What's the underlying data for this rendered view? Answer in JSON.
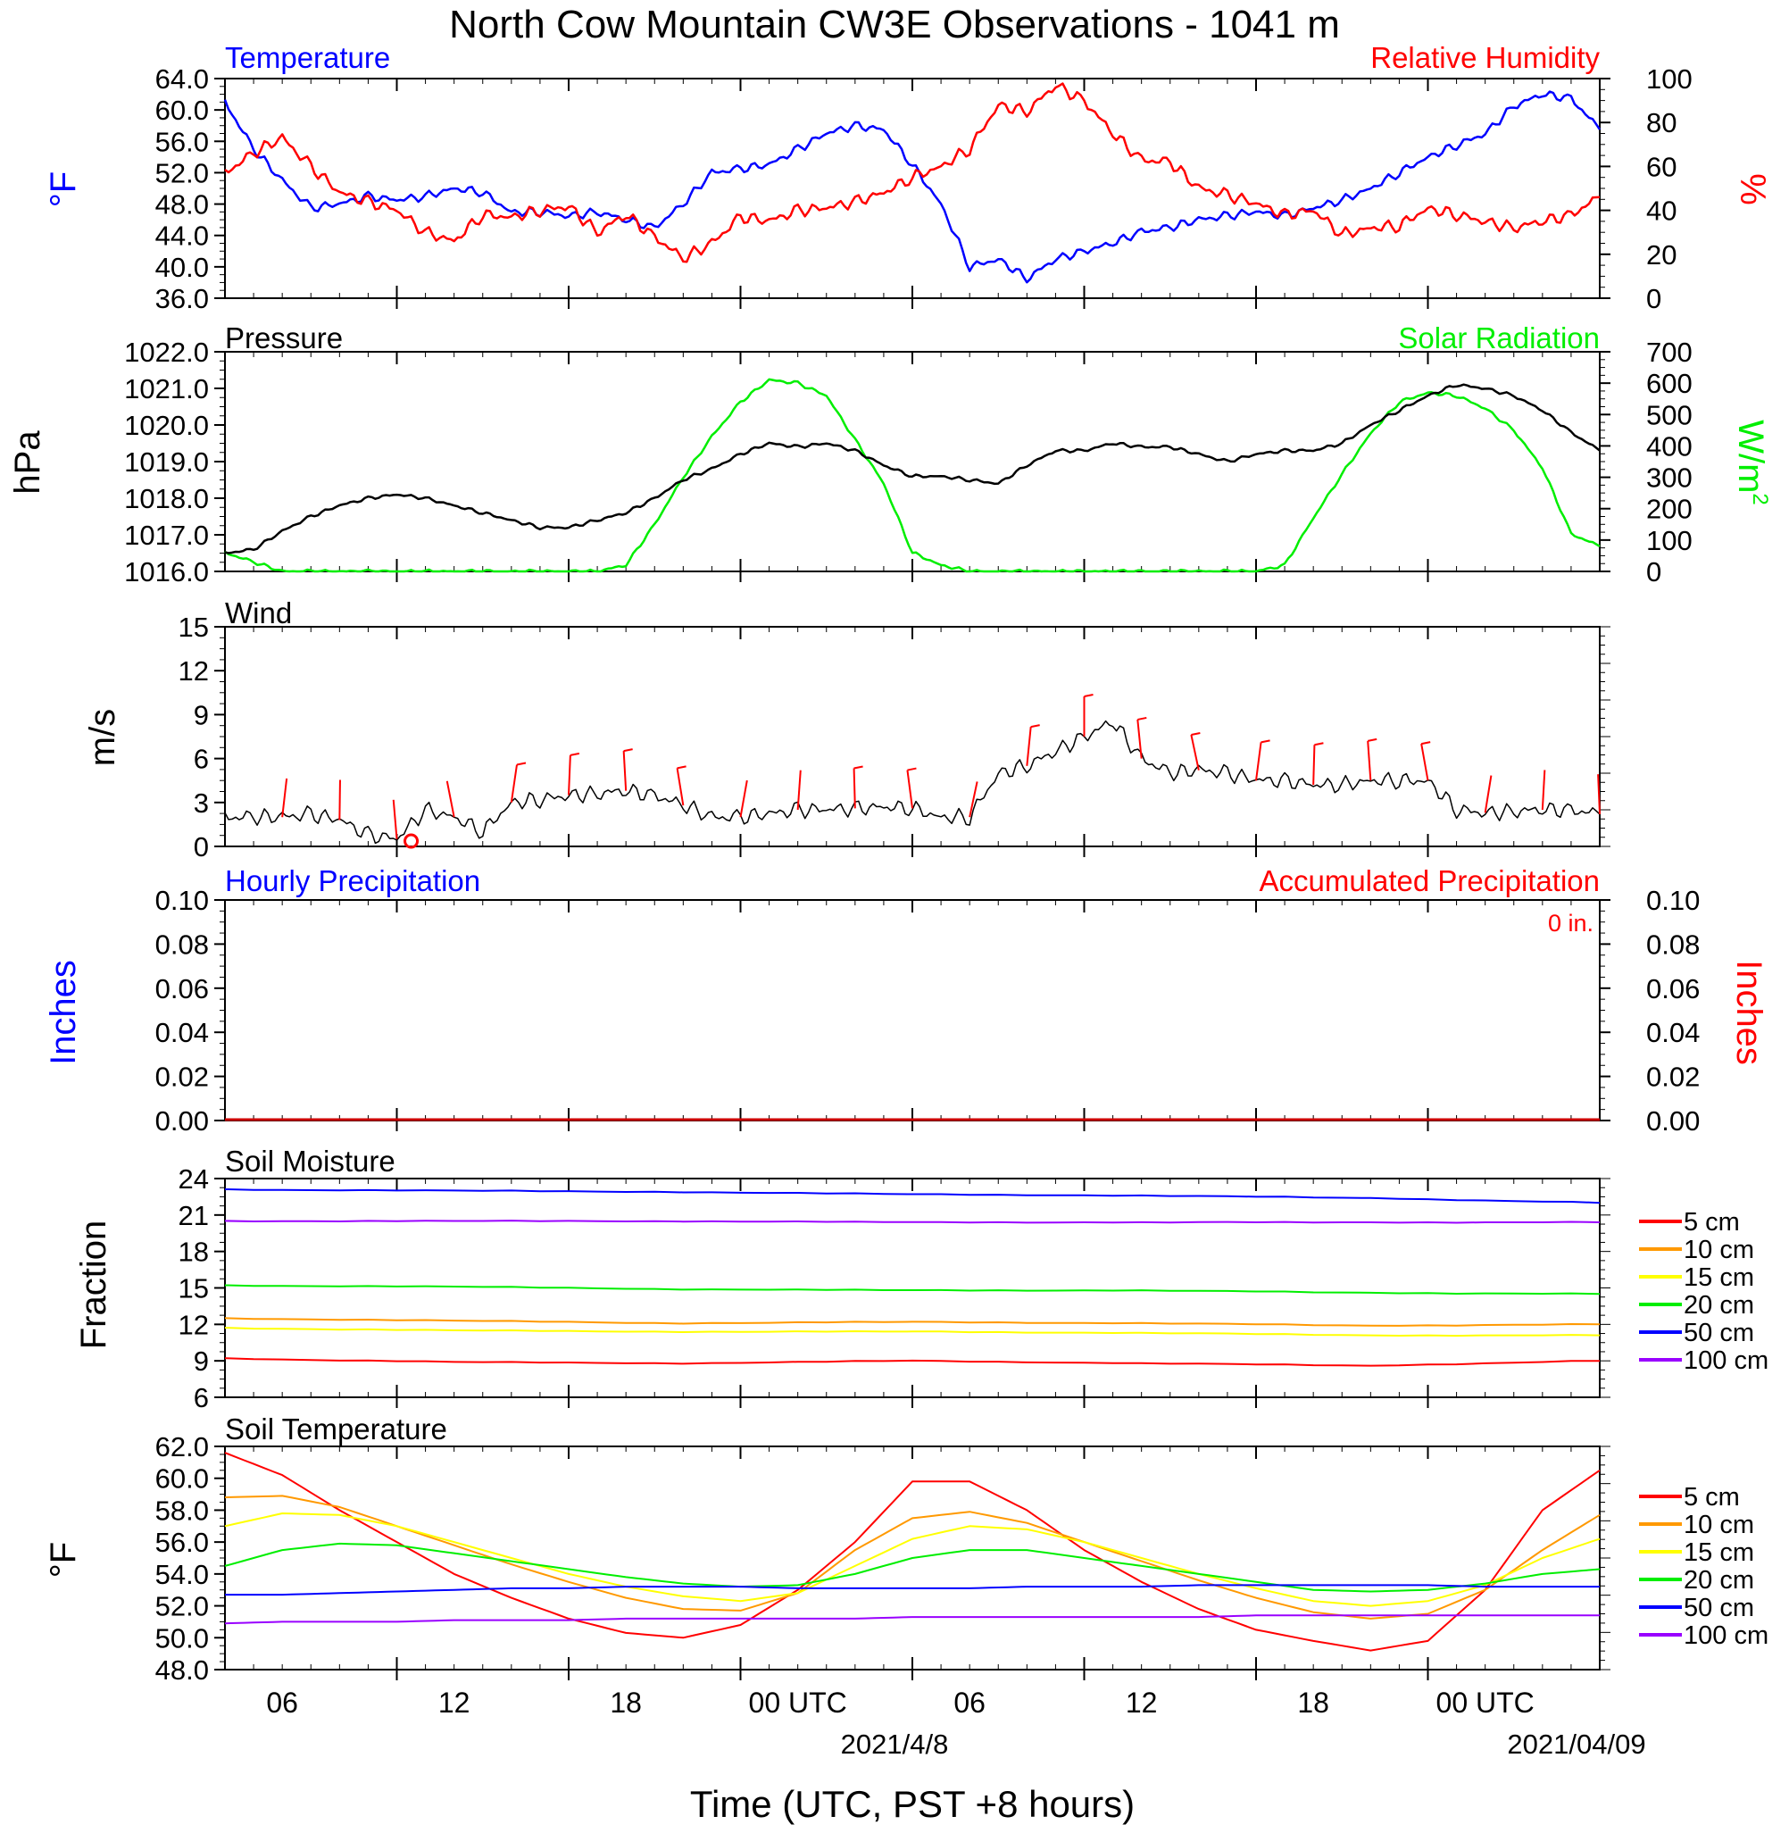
{
  "title": "North Cow Mountain CW3E Observations - 1041 m",
  "x_axis": {
    "ticks": [
      "06",
      "12",
      "18",
      "00 UTC",
      "06",
      "12",
      "18",
      "00 UTC"
    ],
    "dates": [
      "2021/4/8",
      "2021/04/09"
    ],
    "label": "Time (UTC, PST +8 hours)"
  },
  "colors": {
    "blue": "#0000ff",
    "red": "#ff0000",
    "green": "#00ee00",
    "black": "#000000",
    "orange": "#ff9900",
    "yellow": "#ffff00",
    "purple": "#9900ff"
  },
  "chart_data": [
    {
      "type": "line",
      "panel": "temperature-humidity",
      "title_left": "Temperature",
      "title_right": "Relative Humidity",
      "ylabel_left": "°F",
      "ylabel_right": "%",
      "yticks_left": [
        "64.0",
        "60.0",
        "56.0",
        "52.0",
        "48.0",
        "44.0",
        "40.0",
        "36.0"
      ],
      "yticks_right": [
        "100",
        "80",
        "60",
        "40",
        "20",
        "0"
      ],
      "ylim_left": [
        36,
        64
      ],
      "ylim_right": [
        0,
        100
      ],
      "x_hours": [
        0,
        1,
        2,
        3,
        4,
        5,
        6,
        7,
        8,
        9,
        10,
        11,
        12,
        13,
        14,
        15,
        16,
        17,
        18,
        19,
        20,
        21,
        22,
        23,
        24,
        25,
        26,
        27,
        28,
        29,
        30,
        31,
        32,
        33,
        34,
        35,
        36,
        37,
        38,
        39,
        40,
        41,
        42,
        43,
        44,
        45,
        46,
        47,
        48
      ],
      "series": [
        {
          "name": "Temperature",
          "axis": "left",
          "color": "#0000ff",
          "values": [
            61,
            55,
            51,
            47.5,
            48,
            49,
            48.5,
            49,
            50,
            49.5,
            47,
            47,
            46.5,
            47,
            46,
            45,
            48,
            52,
            52.5,
            53,
            55,
            57,
            58,
            57.5,
            53,
            48,
            40,
            41,
            38.5,
            41,
            42,
            43,
            44.5,
            45,
            46,
            46.5,
            47,
            46.5,
            47.5,
            48.5,
            50,
            52,
            54,
            55.5,
            57,
            60.5,
            62,
            61.5,
            57.5
          ]
        },
        {
          "name": "Relative Humidity",
          "axis": "right",
          "color": "#ff0000",
          "values": [
            57,
            66,
            73,
            60,
            48,
            44,
            40,
            30,
            26,
            38,
            37,
            40,
            42,
            30,
            38,
            28,
            18,
            25,
            37,
            35,
            40,
            41,
            44,
            48,
            55,
            60,
            68,
            88,
            85,
            97,
            90,
            75,
            63,
            62,
            50,
            47,
            43,
            38,
            40,
            29,
            32,
            33,
            41,
            38,
            35,
            32,
            35,
            38,
            46
          ]
        }
      ]
    },
    {
      "type": "line",
      "panel": "pressure-solar",
      "title_left": "Pressure",
      "title_right": "Solar Radiation",
      "ylabel_left": "hPa",
      "ylabel_right_base": "W/m",
      "ylabel_right_sup": "2",
      "yticks_left": [
        "1022.0",
        "1021.0",
        "1020.0",
        "1019.0",
        "1018.0",
        "1017.0",
        "1016.0"
      ],
      "yticks_right": [
        "700",
        "600",
        "500",
        "400",
        "300",
        "200",
        "100",
        "0"
      ],
      "ylim_left": [
        1016,
        1022
      ],
      "ylim_right": [
        0,
        700
      ],
      "x_hours": [
        0,
        1,
        2,
        3,
        4,
        5,
        6,
        7,
        8,
        9,
        10,
        11,
        12,
        13,
        14,
        15,
        16,
        17,
        18,
        19,
        20,
        21,
        22,
        23,
        24,
        25,
        26,
        27,
        28,
        29,
        30,
        31,
        32,
        33,
        34,
        35,
        36,
        37,
        38,
        39,
        40,
        41,
        42,
        43,
        44,
        45,
        46,
        47,
        48
      ],
      "series": [
        {
          "name": "Pressure",
          "axis": "left",
          "color": "#000000",
          "values": [
            1016.5,
            1016.6,
            1017.1,
            1017.5,
            1017.8,
            1018.0,
            1018.1,
            1018.0,
            1017.8,
            1017.6,
            1017.4,
            1017.2,
            1017.2,
            1017.4,
            1017.6,
            1018.0,
            1018.5,
            1018.8,
            1019.2,
            1019.5,
            1019.4,
            1019.5,
            1019.3,
            1018.9,
            1018.6,
            1018.6,
            1018.5,
            1018.4,
            1018.9,
            1019.3,
            1019.3,
            1019.5,
            1019.4,
            1019.4,
            1019.2,
            1019.0,
            1019.2,
            1019.3,
            1019.3,
            1019.5,
            1020.0,
            1020.4,
            1020.8,
            1021.1,
            1021.0,
            1020.8,
            1020.4,
            1019.8,
            1019.3
          ]
        },
        {
          "name": "Solar Radiation",
          "axis": "right",
          "color": "#00ee00",
          "values": [
            60,
            30,
            0,
            0,
            0,
            0,
            0,
            0,
            0,
            0,
            0,
            0,
            0,
            0,
            20,
            150,
            300,
            430,
            540,
            610,
            600,
            560,
            420,
            280,
            60,
            20,
            0,
            0,
            0,
            0,
            0,
            0,
            0,
            0,
            0,
            0,
            0,
            20,
            170,
            310,
            440,
            540,
            570,
            560,
            520,
            450,
            330,
            120,
            80
          ]
        }
      ]
    },
    {
      "type": "line",
      "panel": "wind",
      "title_left": "Wind",
      "ylabel_left": "m/s",
      "yticks_left": [
        "15",
        "12",
        "9",
        "6",
        "3",
        "0"
      ],
      "ylim_left": [
        0,
        15
      ],
      "x_hours": [
        0,
        1,
        2,
        3,
        4,
        5,
        6,
        7,
        8,
        9,
        10,
        11,
        12,
        13,
        14,
        15,
        16,
        17,
        18,
        19,
        20,
        21,
        22,
        23,
        24,
        25,
        26,
        27,
        28,
        29,
        30,
        31,
        32,
        33,
        34,
        35,
        36,
        37,
        38,
        39,
        40,
        41,
        42,
        43,
        44,
        45,
        46,
        47,
        48
      ],
      "series": [
        {
          "name": "Wind speed",
          "axis": "left",
          "color": "#000000",
          "values": [
            2,
            2,
            2,
            2.2,
            1.8,
            0.8,
            0.5,
            2.5,
            2,
            1,
            3,
            3.2,
            3.5,
            3.6,
            3.8,
            3.5,
            2.8,
            2,
            2,
            2.2,
            2.5,
            2.5,
            2.6,
            2.7,
            2.6,
            2,
            2,
            5,
            5.5,
            6.5,
            7.5,
            8.5,
            6,
            5,
            5.2,
            5,
            4.5,
            4.5,
            4.2,
            4.2,
            4.5,
            4.5,
            4.5,
            2.5,
            2.3,
            2.4,
            2.5,
            2.5,
            2.2
          ]
        }
      ],
      "barbs_note": "calm marker at 06 UTC"
    },
    {
      "type": "bar",
      "panel": "precipitation",
      "title_left": "Hourly Precipitation",
      "title_right": "Accumulated Precipitation",
      "accumulated_total": "0 in.",
      "ylabel_left": "Inches",
      "ylabel_right": "Inches",
      "yticks_left": [
        "0.10",
        "0.08",
        "0.06",
        "0.04",
        "0.02",
        "0.00"
      ],
      "yticks_right": [
        "0.10",
        "0.08",
        "0.06",
        "0.04",
        "0.02",
        "0.00"
      ],
      "ylim_left": [
        0,
        0.1
      ],
      "values": [
        0,
        0
      ]
    },
    {
      "type": "line",
      "panel": "soil-moisture",
      "title_left": "Soil Moisture",
      "ylabel_left": "Fraction",
      "yticks_left": [
        "24",
        "21",
        "18",
        "15",
        "12",
        "9",
        "6"
      ],
      "ylim_left": [
        6,
        24
      ],
      "x_hours": [
        0,
        8,
        16,
        24,
        32,
        40,
        48
      ],
      "series": [
        {
          "name": "5 cm",
          "color": "#ff0000",
          "values": [
            9.2,
            8.9,
            8.8,
            9.0,
            8.8,
            8.6,
            9.0
          ]
        },
        {
          "name": "10 cm",
          "color": "#ff9900",
          "values": [
            12.5,
            12.3,
            12.1,
            12.2,
            12.1,
            11.9,
            12.0
          ]
        },
        {
          "name": "15 cm",
          "color": "#ffff00",
          "values": [
            11.7,
            11.5,
            11.4,
            11.4,
            11.3,
            11.1,
            11.1
          ]
        },
        {
          "name": "20 cm",
          "color": "#00ee00",
          "values": [
            15.2,
            15.1,
            14.9,
            14.8,
            14.8,
            14.6,
            14.5
          ]
        },
        {
          "name": "50 cm",
          "color": "#0000ff",
          "values": [
            23.1,
            23.0,
            22.9,
            22.7,
            22.6,
            22.4,
            22.0
          ]
        },
        {
          "name": "100 cm",
          "color": "#9900ff",
          "values": [
            20.5,
            20.5,
            20.5,
            20.4,
            20.4,
            20.4,
            20.4
          ]
        }
      ]
    },
    {
      "type": "line",
      "panel": "soil-temperature",
      "title_left": "Soil Temperature",
      "ylabel_left": "°F",
      "yticks_left": [
        "62.0",
        "60.0",
        "58.0",
        "56.0",
        "54.0",
        "52.0",
        "50.0",
        "48.0"
      ],
      "ylim_left": [
        48,
        62
      ],
      "x_hours": [
        0,
        2,
        4,
        6,
        8,
        10,
        12,
        14,
        16,
        18,
        20,
        22,
        24,
        26,
        28,
        30,
        32,
        34,
        36,
        38,
        40,
        42,
        44,
        46,
        48
      ],
      "series": [
        {
          "name": "5 cm",
          "color": "#ff0000",
          "values": [
            61.6,
            60.2,
            58,
            56,
            54,
            52.5,
            51.2,
            50.3,
            50,
            50.8,
            53,
            56,
            59.8,
            59.8,
            58,
            55.5,
            53.5,
            51.8,
            50.5,
            49.8,
            49.2,
            49.8,
            53,
            58,
            60.5
          ]
        },
        {
          "name": "10 cm",
          "color": "#ff9900",
          "values": [
            58.8,
            58.9,
            58.2,
            57,
            55.8,
            54.6,
            53.5,
            52.5,
            51.8,
            51.7,
            52.8,
            55.5,
            57.5,
            57.9,
            57.2,
            56,
            54.8,
            53.6,
            52.5,
            51.6,
            51.2,
            51.5,
            53,
            55.5,
            57.7
          ]
        },
        {
          "name": "15 cm",
          "color": "#ffff00",
          "values": [
            57,
            57.8,
            57.7,
            57,
            56,
            55,
            54,
            53.2,
            52.6,
            52.3,
            52.8,
            54.5,
            56.2,
            57,
            56.8,
            56,
            55,
            54,
            53.1,
            52.3,
            52,
            52.3,
            53.3,
            55,
            56.2
          ]
        },
        {
          "name": "20 cm",
          "color": "#00ee00",
          "values": [
            54.5,
            55.5,
            55.9,
            55.8,
            55.3,
            54.8,
            54.3,
            53.8,
            53.4,
            53.2,
            53.3,
            54,
            55,
            55.5,
            55.5,
            55,
            54.5,
            54,
            53.5,
            53,
            52.9,
            53,
            53.4,
            54,
            54.3
          ]
        },
        {
          "name": "50 cm",
          "color": "#0000ff",
          "values": [
            52.7,
            52.7,
            52.8,
            52.9,
            53.0,
            53.1,
            53.1,
            53.2,
            53.2,
            53.2,
            53.1,
            53.1,
            53.1,
            53.1,
            53.2,
            53.2,
            53.2,
            53.3,
            53.3,
            53.3,
            53.3,
            53.3,
            53.2,
            53.2,
            53.2
          ]
        },
        {
          "name": "100 cm",
          "color": "#9900ff",
          "values": [
            50.9,
            51.0,
            51.0,
            51.0,
            51.1,
            51.1,
            51.1,
            51.2,
            51.2,
            51.2,
            51.2,
            51.2,
            51.3,
            51.3,
            51.3,
            51.3,
            51.3,
            51.3,
            51.4,
            51.4,
            51.4,
            51.4,
            51.4,
            51.4,
            51.4
          ]
        }
      ]
    }
  ]
}
